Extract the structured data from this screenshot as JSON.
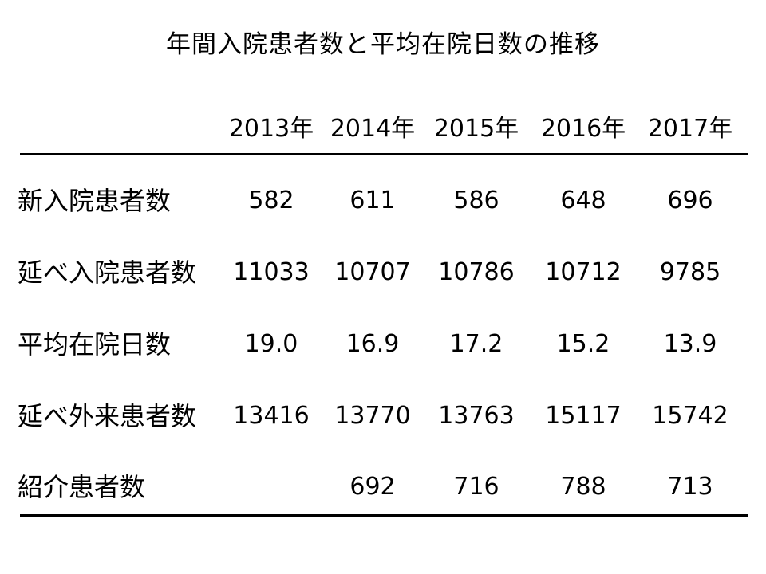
{
  "slide": {
    "title": "年間入院患者数と平均在院日数の推移"
  },
  "table": {
    "years": [
      "2013年",
      "2014年",
      "2015年",
      "2016年",
      "2017年"
    ],
    "rows": [
      {
        "label": "新入院患者数",
        "values": [
          "582",
          "611",
          "586",
          "648",
          "696"
        ]
      },
      {
        "label": "延べ入院患者数",
        "values": [
          "11033",
          "10707",
          "10786",
          "10712",
          "9785"
        ]
      },
      {
        "label": "平均在院日数",
        "values": [
          "19.0",
          "16.9",
          "17.2",
          "15.2",
          "13.9"
        ]
      },
      {
        "label": "延べ外来患者数",
        "values": [
          "13416",
          "13770",
          "13763",
          "15117",
          "15742"
        ]
      },
      {
        "label": "紹介患者数",
        "values": [
          "",
          "692",
          "716",
          "788",
          "713"
        ]
      }
    ]
  }
}
